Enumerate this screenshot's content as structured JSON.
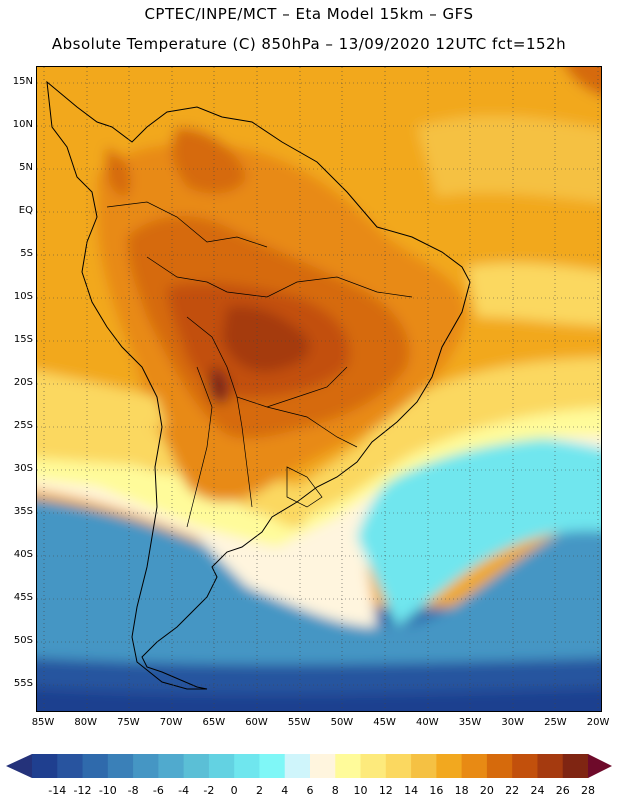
{
  "header": {
    "line1": "CPTEC/INPE/MCT –  Eta Model 15km – GFS",
    "line2": "Absolute Temperature (C) 850hPa – 13/09/2020 12UTC fct=152h"
  },
  "map": {
    "variable": "Absolute Temperature (C) 850hPa",
    "lat_labels": [
      "15N",
      "10N",
      "5N",
      "EQ",
      "5S",
      "10S",
      "15S",
      "20S",
      "25S",
      "30S",
      "35S",
      "40S",
      "45S",
      "50S",
      "55S"
    ],
    "lon_labels": [
      "85W",
      "80W",
      "75W",
      "70W",
      "65W",
      "60W",
      "55W",
      "50W",
      "45W",
      "40W",
      "35W",
      "30W",
      "25W",
      "20W"
    ],
    "lat_range": [
      -58,
      17
    ],
    "lon_range": [
      -86,
      -20
    ],
    "grid": "dotted"
  },
  "colorbar": {
    "labels": [
      "-14",
      "-12",
      "-10",
      "-8",
      "-6",
      "-4",
      "-2",
      "0",
      "2",
      "4",
      "6",
      "8",
      "10",
      "12",
      "14",
      "16",
      "18",
      "20",
      "22",
      "24",
      "26",
      "28"
    ],
    "colors": [
      "#1f3f8f",
      "#28549f",
      "#2f6aac",
      "#3a80b8",
      "#4596c4",
      "#50aace",
      "#5bbfd6",
      "#63d2e2",
      "#6fe6ee",
      "#7ff7f7",
      "#cff5fb",
      "#fff5de",
      "#fffb9a",
      "#fdea7c",
      "#fbd860",
      "#f5c143",
      "#f2a81f",
      "#e88a14",
      "#d66a0c",
      "#c2500c",
      "#a53a0f",
      "#7f2512"
    ],
    "arrow_low": "#24327a",
    "arrow_high": "#6e0a2a"
  }
}
